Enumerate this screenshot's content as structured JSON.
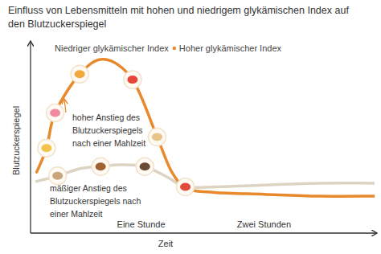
{
  "chart_data": {
    "type": "line",
    "title": "Einfluss von Lebensmitteln mit hohen und niedrigem glykämischen Index auf den Blutzuckerspiegel",
    "x_label": "Zeit",
    "y_label": "Blutzuckerspiegel",
    "annotations": [
      [
        "hoher Anstieg des",
        "Blutzuckerspiegels",
        "nach einer Mahlzeit"
      ],
      [
        "mäßiger Anstieg des",
        "Blutzuckerspiegels nach",
        "einer Mahlzeit"
      ]
    ],
    "series": [
      {
        "name": "Hoher glykämischer Index",
        "color": "#e8892b",
        "x": [
          0.15,
          0.23,
          0.3,
          0.5,
          0.7,
          0.93,
          1.13,
          1.25,
          1.38,
          1.6,
          2.0,
          2.45,
          2.9
        ],
        "values": [
          33,
          46,
          65,
          86,
          94,
          83,
          52,
          33,
          24,
          22,
          21,
          20,
          20
        ]
      },
      {
        "name": "Niedriger glykämischer Index",
        "color": "#ddd3c3",
        "x": [
          0.15,
          0.32,
          0.51,
          0.67,
          0.83,
          1.03,
          1.22,
          1.36,
          1.6,
          2.0,
          2.45,
          2.9
        ],
        "values": [
          28,
          31,
          35,
          36,
          37,
          36,
          30,
          25,
          25,
          26,
          27,
          27
        ]
      }
    ],
    "xlim": [
      0.1,
      2.9
    ],
    "ylim": [
      0,
      100
    ],
    "xticks": [
      {
        "value": 1,
        "label": "Eine Stunde"
      },
      {
        "value": 2,
        "label": "Zwei Stunden"
      }
    ],
    "tick_labels": "x",
    "grid": false,
    "legend": "top",
    "line_style": "solid"
  }
}
